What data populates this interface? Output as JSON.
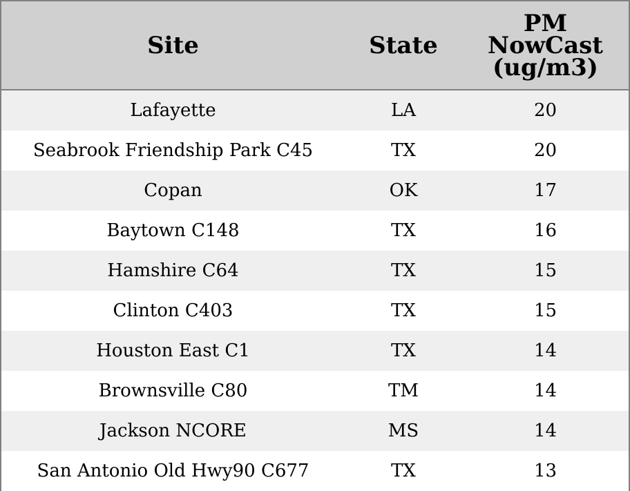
{
  "table": {
    "headers": {
      "site": "Site",
      "state": "State",
      "pm_line1": "PM",
      "pm_line2": "NowCast",
      "pm_line3": "(ug/m3)"
    },
    "rows": [
      {
        "site": "Lafayette",
        "state": "LA",
        "pm": "20"
      },
      {
        "site": "Seabrook Friendship Park C45",
        "state": "TX",
        "pm": "20"
      },
      {
        "site": "Copan",
        "state": "OK",
        "pm": "17"
      },
      {
        "site": "Baytown C148",
        "state": "TX",
        "pm": "16"
      },
      {
        "site": "Hamshire C64",
        "state": "TX",
        "pm": "15"
      },
      {
        "site": "Clinton C403",
        "state": "TX",
        "pm": "15"
      },
      {
        "site": "Houston East C1",
        "state": "TX",
        "pm": "14"
      },
      {
        "site": "Brownsville C80",
        "state": "TM",
        "pm": "14"
      },
      {
        "site": "Jackson NCORE",
        "state": "MS",
        "pm": "14"
      },
      {
        "site": "San Antonio Old Hwy90 C677",
        "state": "TX",
        "pm": "13"
      }
    ]
  },
  "colors": {
    "header_bg": "#d0d0d0",
    "alt_row_bg": "#efefef",
    "row_bg": "#ffffff",
    "border": "#808080"
  }
}
